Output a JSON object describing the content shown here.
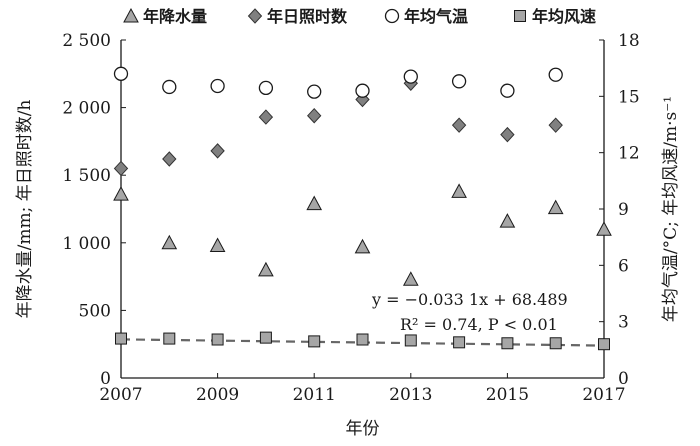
{
  "chart_data": {
    "type": "scatter",
    "xlabel": "年份",
    "ylabel_left": "年降水量/mm; 年日照时数/h",
    "ylabel_right": "年均气温/°C; 年均风速/m·s⁻¹",
    "xlim": [
      2007,
      2017
    ],
    "ylim_left": [
      0,
      2500
    ],
    "ylim_right": [
      0,
      18
    ],
    "x_ticks": [
      "2007",
      "2009",
      "2011",
      "2013",
      "2015",
      "2017"
    ],
    "y_ticks_left": [
      "0",
      "500",
      "1 000",
      "1 500",
      "2 000",
      "2 500"
    ],
    "y_ticks_right": [
      "0",
      "3",
      "6",
      "9",
      "12",
      "15",
      "18"
    ],
    "legend_position": "top",
    "series": [
      {
        "name": "年降水量",
        "axis": "left",
        "marker": "triangle",
        "color": "#a6a6a6",
        "x": [
          2007,
          2008,
          2009,
          2010,
          2011,
          2012,
          2013,
          2014,
          2015,
          2016,
          2017
        ],
        "y": [
          1360,
          1000,
          980,
          800,
          1290,
          970,
          730,
          1380,
          1160,
          1260,
          1100
        ]
      },
      {
        "name": "年日照时数",
        "axis": "left",
        "marker": "diamond",
        "color": "#808080",
        "x": [
          2007,
          2008,
          2009,
          2010,
          2011,
          2012,
          2013,
          2014,
          2015,
          2016
        ],
        "y": [
          1550,
          1620,
          1680,
          1930,
          1940,
          2060,
          2180,
          1870,
          1800,
          1870
        ]
      },
      {
        "name": "年均气温",
        "axis": "right",
        "marker": "circle-open",
        "color": "#ffffff",
        "x": [
          2007,
          2008,
          2009,
          2010,
          2011,
          2012,
          2013,
          2014,
          2015,
          2016
        ],
        "y": [
          16.2,
          15.5,
          15.55,
          15.45,
          15.25,
          15.3,
          16.05,
          15.8,
          15.3,
          16.15
        ]
      },
      {
        "name": "年均风速",
        "axis": "right",
        "marker": "square",
        "color": "#a6a6a6",
        "x": [
          2007,
          2008,
          2009,
          2010,
          2011,
          2012,
          2013,
          2014,
          2015,
          2016,
          2017
        ],
        "y": [
          2.1,
          2.1,
          2.05,
          2.15,
          1.95,
          2.05,
          2.0,
          1.9,
          1.85,
          1.85,
          1.8
        ]
      }
    ],
    "trendline": {
      "series": "年均风速",
      "slope": -0.0331,
      "intercept": 68.489,
      "style": "dashed",
      "color": "#666666"
    },
    "annotation": {
      "equation": "y = −0.033 1x + 68.489",
      "r2": "R² = 0.74, P < 0.01"
    }
  }
}
